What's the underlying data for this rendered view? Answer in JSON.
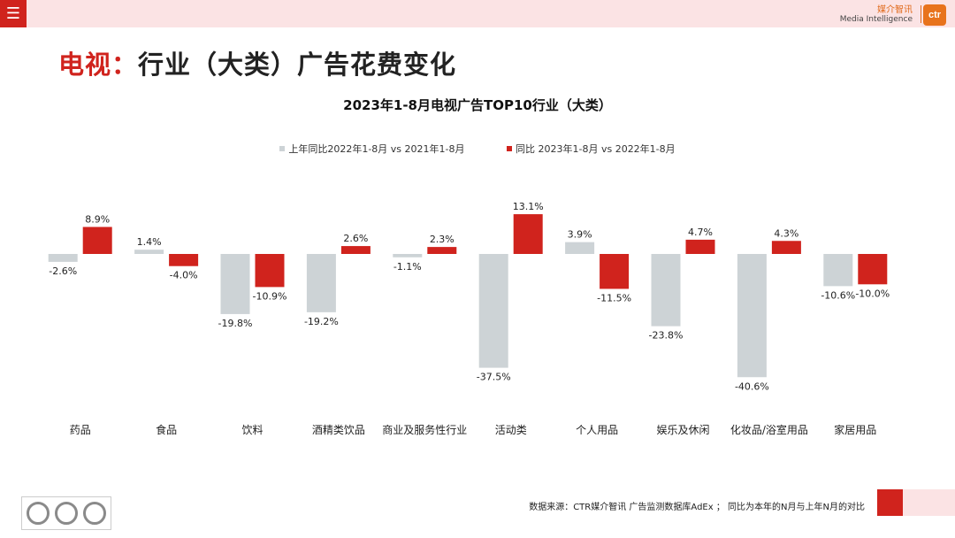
{
  "header": {
    "menu_icon": "hamburger-menu-icon",
    "brand_cn": "媒介智讯",
    "brand_en": "Media Intelligence",
    "logo_text": "ctr"
  },
  "page": {
    "title_accent": "电视：",
    "title_main": "行业（大类）广告花费变化"
  },
  "footer": {
    "source": "数据来源：CTR媒介智讯 广告监测数据库AdEx ； 同比为本年的N月与上年N月的对比"
  },
  "chart_data": {
    "type": "bar",
    "title": "2023年1-8月电视广告TOP10行业（大类）",
    "legend_placement": "top",
    "grid": false,
    "ylim": [
      -45,
      15
    ],
    "categories": [
      "药品",
      "食品",
      "饮料",
      "酒精类饮品",
      "商业及服务性行业",
      "活动类",
      "个人用品",
      "娱乐及休闲",
      "化妆品/浴室用品",
      "家居用品"
    ],
    "series": [
      {
        "name": "上年同比2022年1-8月 vs 2021年1-8月",
        "color": "#cdd3d6",
        "values": [
          -2.6,
          1.4,
          -19.8,
          -19.2,
          -1.1,
          -37.5,
          3.9,
          -23.8,
          -40.6,
          -10.6
        ],
        "labels": [
          "-2.6%",
          "1.4%",
          "-19.8%",
          "-19.2%",
          "-1.1%",
          "-37.5%",
          "3.9%",
          "-23.8%",
          "-40.6%",
          "-10.6%"
        ]
      },
      {
        "name": "同比 2023年1-8月 vs 2022年1-8月",
        "color": "#d0231d",
        "values": [
          8.9,
          -4.0,
          -10.9,
          2.6,
          2.3,
          13.1,
          -11.5,
          4.7,
          4.3,
          -10.0
        ],
        "labels": [
          "8.9%",
          "-4.0%",
          "-10.9%",
          "2.6%",
          "2.3%",
          "13.1%",
          "-11.5%",
          "4.7%",
          "4.3%",
          "-10.0%"
        ]
      }
    ]
  }
}
